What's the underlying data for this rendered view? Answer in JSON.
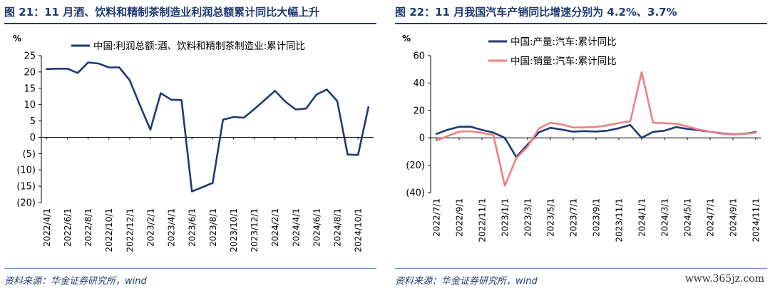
{
  "left": {
    "title": "图 21：11 月酒、饮料和精制茶制造业利润总额累计同比大幅上升",
    "source": "资料来源：华金证券研究所，wind"
  },
  "right": {
    "title": "图 22：11 月我国汽车产销同比增速分别为 4.2%、3.7%",
    "source": "资料来源：华金证券研究所，wind",
    "watermark": "www.365jz.com"
  },
  "chart_data": [
    {
      "type": "line",
      "unit_label": "%",
      "ylim": [
        -20,
        25
      ],
      "yticks": [
        25,
        20,
        15,
        10,
        5,
        0,
        -5,
        -10,
        -15,
        -20
      ],
      "ytick_labels": [
        "25",
        "20",
        "15",
        "10",
        "5",
        "0",
        "(5)",
        "(10)",
        "(15)",
        "(20)"
      ],
      "x": [
        "2022/4",
        "2022/5",
        "2022/6",
        "2022/7",
        "2022/8",
        "2022/9",
        "2022/10",
        "2022/11",
        "2022/12",
        "2023/1",
        "2023/2",
        "2023/3",
        "2023/4",
        "2023/5",
        "2023/6",
        "2023/7",
        "2023/8",
        "2023/9",
        "2023/10",
        "2023/11",
        "2023/12",
        "2024/1",
        "2024/2",
        "2024/3",
        "2024/4",
        "2024/5",
        "2024/6",
        "2024/7",
        "2024/8",
        "2024/9",
        "2024/10",
        "2024/11"
      ],
      "x_tick_labels": [
        "2022/4/1",
        "2022/6/1",
        "2022/8/1",
        "2022/10/1",
        "2022/12/1",
        "2023/2/1",
        "2023/4/1",
        "2023/6/1",
        "2023/8/1",
        "2023/10/1",
        "2023/12/1",
        "2024/2/1",
        "2024/4/1",
        "2024/6/1",
        "2024/8/1",
        "2024/10/1"
      ],
      "x_tick_every": 2,
      "legend_position": "top",
      "series": [
        {
          "name": "中国:利润总额:酒、饮料和精制茶制造业:累计同比",
          "color": "#1f3b73",
          "values": [
            20.9,
            21.0,
            21.0,
            19.7,
            22.9,
            22.6,
            21.4,
            21.4,
            17.5,
            9.8,
            2.3,
            13.5,
            11.5,
            11.4,
            -16.6,
            -15.3,
            -14.0,
            5.4,
            6.2,
            6.0,
            8.6,
            11.4,
            14.2,
            10.9,
            8.5,
            8.8,
            13.1,
            14.6,
            11.1,
            -5.3,
            -5.4,
            9.2
          ]
        }
      ]
    },
    {
      "type": "line",
      "unit_label": "%",
      "ylim": [
        -40,
        60
      ],
      "yticks": [
        60,
        40,
        20,
        0,
        -20,
        -40
      ],
      "ytick_labels": [
        "60",
        "40",
        "20",
        "0",
        "(20)",
        "(40)"
      ],
      "x": [
        "2022/7",
        "2022/8",
        "2022/9",
        "2022/10",
        "2022/11",
        "2022/12",
        "2023/1",
        "2023/2",
        "2023/3",
        "2023/4",
        "2023/5",
        "2023/6",
        "2023/7",
        "2023/8",
        "2023/9",
        "2023/10",
        "2023/11",
        "2023/12",
        "2024/1",
        "2024/2",
        "2024/3",
        "2024/4",
        "2024/5",
        "2024/6",
        "2024/7",
        "2024/8",
        "2024/9",
        "2024/10",
        "2024/11"
      ],
      "x_tick_labels": [
        "2022/7/1",
        "2022/9/1",
        "2022/11/1",
        "2023/1/1",
        "2023/3/1",
        "2023/5/1",
        "2023/7/1",
        "2023/9/1",
        "2023/11/1",
        "2024/1/1",
        "2024/3/1",
        "2024/5/1",
        "2024/7/1",
        "2024/9/1",
        "2024/11/1"
      ],
      "x_tick_every": 2,
      "legend_position": "top-left",
      "series": [
        {
          "name": "中国:产量:汽车:累计同比",
          "color": "#1f3b73",
          "values": [
            2.8,
            5.9,
            8.0,
            8.1,
            5.8,
            3.8,
            0.0,
            -14.0,
            -5.0,
            4.0,
            7.3,
            6.0,
            4.5,
            4.9,
            4.6,
            5.2,
            7.0,
            9.3,
            0.0,
            4.3,
            5.2,
            7.8,
            6.5,
            5.5,
            4.4,
            3.3,
            2.6,
            2.9,
            4.2
          ]
        },
        {
          "name": "中国:销量:汽车:累计同比",
          "color": "#f08080",
          "values": [
            -2.0,
            1.3,
            4.5,
            4.8,
            3.6,
            2.1,
            -35.0,
            -15.0,
            -6.5,
            6.8,
            11.0,
            9.8,
            7.5,
            7.6,
            7.9,
            9.1,
            10.8,
            12.0,
            47.9,
            11.1,
            10.6,
            10.3,
            8.3,
            6.1,
            4.4,
            3.0,
            2.4,
            2.8,
            3.7
          ]
        }
      ]
    }
  ]
}
